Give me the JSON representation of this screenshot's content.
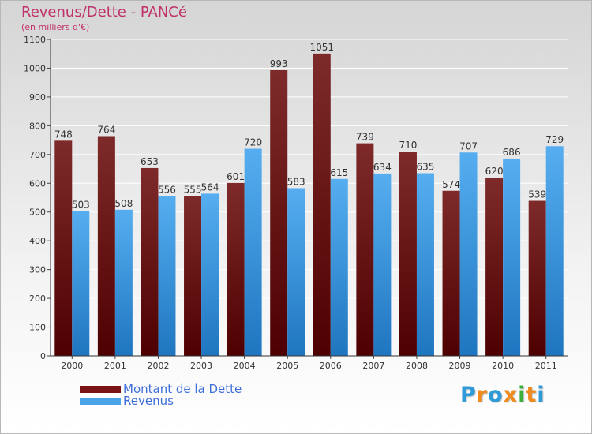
{
  "title": "Revenus/Dette - PANCé",
  "subtitle": "(en milliers d'€)",
  "logo": {
    "letters": [
      "P",
      "r",
      "o",
      "x",
      "i",
      "t",
      "i"
    ],
    "colors": [
      "#2e9ad8",
      "#f08a1c",
      "#2e9ad8",
      "#f08a1c",
      "#3cae3c",
      "#f08a1c",
      "#2e9ad8"
    ]
  },
  "colors": {
    "dette": "#7a1414",
    "revenus": "#4aa3e6",
    "title": "#c0306a",
    "legend_text": "#3e6fd8"
  },
  "chart_data": {
    "type": "bar",
    "title": "Revenus/Dette - PANCé",
    "subtitle": "(en milliers d'€)",
    "categories": [
      "2000",
      "2001",
      "2002",
      "2003",
      "2004",
      "2005",
      "2006",
      "2007",
      "2008",
      "2009",
      "2010",
      "2011"
    ],
    "series": [
      {
        "name": "Montant de la Dette",
        "values": [
          748,
          764,
          653,
          555,
          601,
          993,
          1051,
          739,
          710,
          574,
          620,
          539
        ]
      },
      {
        "name": "Revenus",
        "values": [
          503,
          508,
          556,
          564,
          720,
          583,
          615,
          634,
          635,
          707,
          686,
          729
        ]
      }
    ],
    "ylim": [
      0,
      1100
    ],
    "yticks": [
      0,
      100,
      200,
      300,
      400,
      500,
      600,
      700,
      800,
      900,
      1000,
      1100
    ],
    "grid": true,
    "legend_position": "bottom-left"
  }
}
